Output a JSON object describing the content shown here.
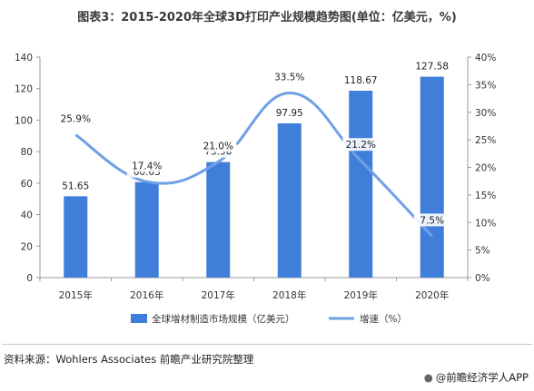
{
  "header": {
    "title": "图表3：2015-2020年全球3D打印产业规模趋势图(单位：亿美元，%)"
  },
  "footer": {
    "source": "资料来源：Wohlers Associates 前瞻产业研究院整理",
    "app_label": "@前瞻经济学人APP",
    "app_icon": "bear-logo-icon"
  },
  "colors": {
    "bar": "#3f7fd9",
    "line": "#6fa0e6",
    "axis": "#999999"
  },
  "chart_data": {
    "type": "bar",
    "title": "图表3：2015-2020年全球3D打印产业规模趋势图(单位：亿美元，%)",
    "categories": [
      "2015年",
      "2016年",
      "2017年",
      "2018年",
      "2019年",
      "2020年"
    ],
    "series": [
      {
        "name": "全球增材制造市场规模（亿美元）",
        "type": "bar",
        "axis": "left",
        "values": [
          51.65,
          60.63,
          73.36,
          97.95,
          118.67,
          127.58
        ],
        "labels": [
          "51.65",
          "60.63",
          "73.36",
          "97.95",
          "118.67",
          "127.58"
        ]
      },
      {
        "name": "增速（%）",
        "type": "line",
        "axis": "right",
        "smooth": true,
        "values": [
          25.9,
          17.4,
          21.0,
          33.5,
          21.2,
          7.5
        ],
        "labels": [
          "25.9%",
          "17.4%",
          "21.0%",
          "33.5%",
          "21.2%",
          "7.5%"
        ]
      }
    ],
    "y_left": {
      "ylim": [
        0,
        140
      ],
      "ticks": [
        "0",
        "20",
        "40",
        "60",
        "80",
        "100",
        "120",
        "140"
      ]
    },
    "y_right": {
      "ylim": [
        0,
        40
      ],
      "ticks": [
        "0%",
        "5%",
        "10%",
        "15%",
        "20%",
        "25%",
        "30%",
        "35%",
        "40%"
      ]
    },
    "grid": false,
    "legend": "bottom"
  }
}
